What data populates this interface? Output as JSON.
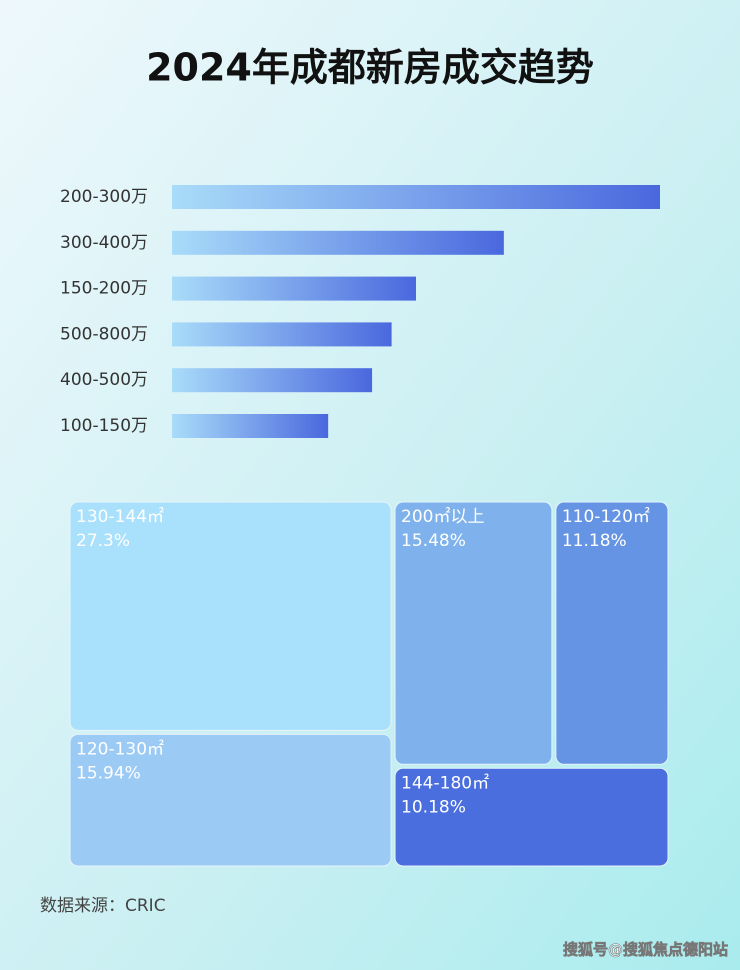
{
  "chart_data": [
    {
      "type": "bar",
      "orientation": "horizontal",
      "title": "2024年成都新房成交趋势",
      "categories": [
        "200-300万",
        "300-400万",
        "150-200万",
        "500-800万",
        "400-500万",
        "100-150万"
      ],
      "values": [
        100,
        68,
        50,
        45,
        41,
        32
      ],
      "color": [
        "#a9dcf9",
        "#4a68de"
      ]
    },
    {
      "type": "treemap",
      "categories": [
        "130-144㎡",
        "200㎡以上",
        "110-120㎡",
        "120-130㎡",
        "144-180㎡"
      ],
      "values": [
        27.3,
        15.48,
        11.18,
        15.94,
        10.18
      ],
      "value_labels": [
        "27.3%",
        "15.48%",
        "11.18%",
        "15.94%",
        "10.18%"
      ],
      "colors": [
        "#a9e0fb",
        "#7fb2ec",
        "#6594e4",
        "#9bcaf4",
        "#4a6ede"
      ]
    }
  ],
  "source": "数据来源：CRIC",
  "watermark": "搜狐号@搜狐焦点德阳站"
}
